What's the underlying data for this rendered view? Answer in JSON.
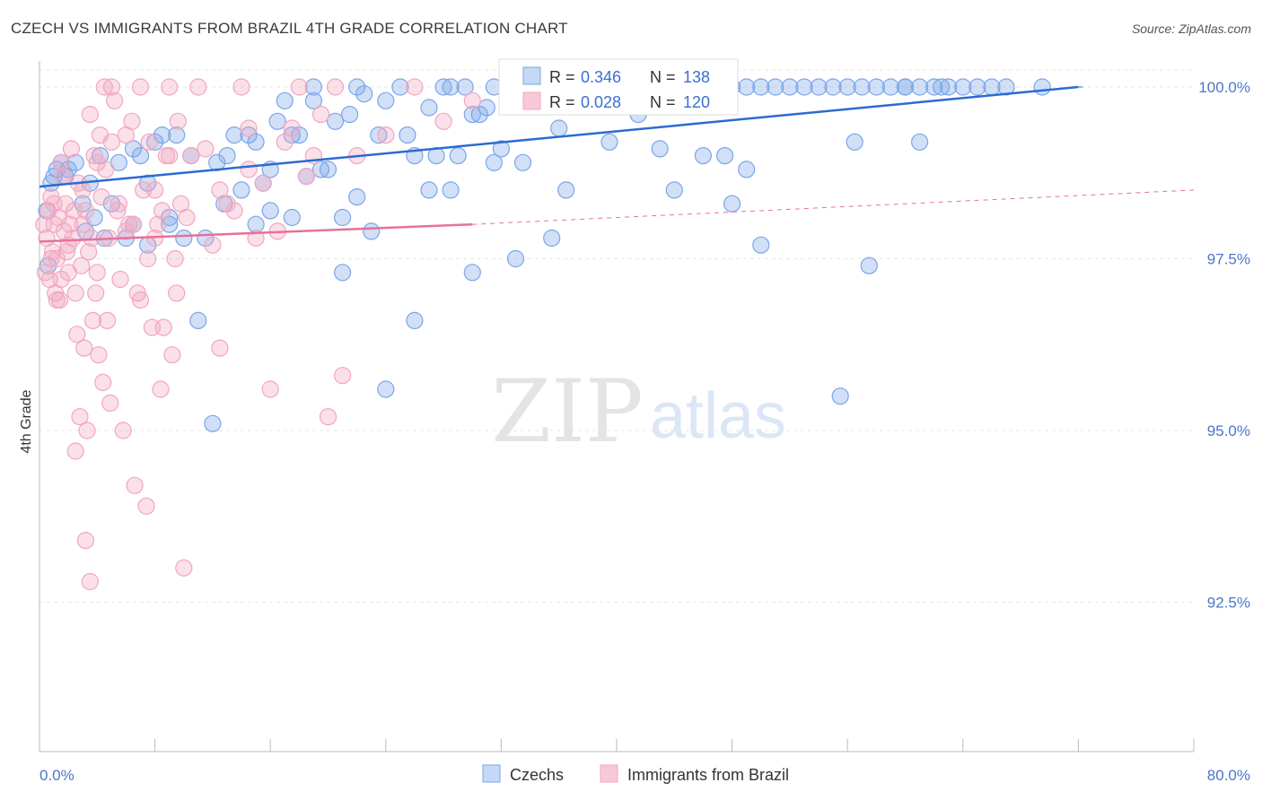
{
  "header": {
    "title": "CZECH VS IMMIGRANTS FROM BRAZIL 4TH GRADE CORRELATION CHART",
    "source": "Source: ZipAtlas.com"
  },
  "watermark": {
    "zip": "ZIP",
    "atlas": "atlas"
  },
  "chart_data": {
    "type": "scatter",
    "title": "CZECH VS IMMIGRANTS FROM BRAZIL 4TH GRADE CORRELATION CHART",
    "ylabel": "4th Grade",
    "xlabel": "",
    "xlim": [
      0,
      80
    ],
    "ylim": [
      90.4,
      100.3
    ],
    "x_tick_labels": [
      "0.0%",
      "80.0%"
    ],
    "y_ticks": [
      {
        "value": 100.0,
        "label": "100.0%"
      },
      {
        "value": 97.5,
        "label": "97.5%"
      },
      {
        "value": 95.0,
        "label": "95.0%"
      },
      {
        "value": 92.5,
        "label": "92.5%"
      }
    ],
    "grid": true,
    "legend_position": "top-center",
    "series": [
      {
        "name": "Czechs",
        "color": "#7aa6e8",
        "line_color": "#2b6bd1",
        "R": "0.346",
        "N": "138",
        "R_label": "R =",
        "N_label": "N =",
        "trend": {
          "x0": 0,
          "y0": 98.55,
          "x1": 72,
          "y1": 100.0,
          "dash_to_x": 72
        },
        "points": [
          [
            0.5,
            98.2
          ],
          [
            0.6,
            97.4
          ],
          [
            0.8,
            98.6
          ],
          [
            1.0,
            98.7
          ],
          [
            1.2,
            98.8
          ],
          [
            1.5,
            98.9
          ],
          [
            1.8,
            98.7
          ],
          [
            2.0,
            98.8
          ],
          [
            2.5,
            98.9
          ],
          [
            3.0,
            98.3
          ],
          [
            3.2,
            97.9
          ],
          [
            3.5,
            98.6
          ],
          [
            3.8,
            98.1
          ],
          [
            4.2,
            99.0
          ],
          [
            4.5,
            97.8
          ],
          [
            5.0,
            98.3
          ],
          [
            5.5,
            98.9
          ],
          [
            6.0,
            97.8
          ],
          [
            6.5,
            99.1
          ],
          [
            7.0,
            99.0
          ],
          [
            7.5,
            98.6
          ],
          [
            8.0,
            99.2
          ],
          [
            8.5,
            99.3
          ],
          [
            9.0,
            98.1
          ],
          [
            9.5,
            99.3
          ],
          [
            10.0,
            97.8
          ],
          [
            10.5,
            99.0
          ],
          [
            11.0,
            96.6
          ],
          [
            11.5,
            97.8
          ],
          [
            12.0,
            95.1
          ],
          [
            12.3,
            98.9
          ],
          [
            12.8,
            98.3
          ],
          [
            13.0,
            99.0
          ],
          [
            13.5,
            99.3
          ],
          [
            14.0,
            98.5
          ],
          [
            14.5,
            99.3
          ],
          [
            15.0,
            99.2
          ],
          [
            15.5,
            98.6
          ],
          [
            16.0,
            98.8
          ],
          [
            16.5,
            99.5
          ],
          [
            17.0,
            99.8
          ],
          [
            17.5,
            99.3
          ],
          [
            18.0,
            99.3
          ],
          [
            18.5,
            98.7
          ],
          [
            19.0,
            99.8
          ],
          [
            19.5,
            98.8
          ],
          [
            20.0,
            98.8
          ],
          [
            20.5,
            99.5
          ],
          [
            21.0,
            97.3
          ],
          [
            21.5,
            99.6
          ],
          [
            22.0,
            100.0
          ],
          [
            22.5,
            99.9
          ],
          [
            23.0,
            97.9
          ],
          [
            23.5,
            99.3
          ],
          [
            24.0,
            99.8
          ],
          [
            25.0,
            100.0
          ],
          [
            25.5,
            99.3
          ],
          [
            26.0,
            96.6
          ],
          [
            27.0,
            99.7
          ],
          [
            27.5,
            99.0
          ],
          [
            28.0,
            100.0
          ],
          [
            28.5,
            98.5
          ],
          [
            29.0,
            99.0
          ],
          [
            29.5,
            100.0
          ],
          [
            30.0,
            97.3
          ],
          [
            30.5,
            99.6
          ],
          [
            31.0,
            99.7
          ],
          [
            31.5,
            100.0
          ],
          [
            32.0,
            99.1
          ],
          [
            32.5,
            100.0
          ],
          [
            33.0,
            100.0
          ],
          [
            33.5,
            98.9
          ],
          [
            34.0,
            100.0
          ],
          [
            35.0,
            100.0
          ],
          [
            35.5,
            97.8
          ],
          [
            36.0,
            99.4
          ],
          [
            37.0,
            100.0
          ],
          [
            38.0,
            100.0
          ],
          [
            39.0,
            100.0
          ],
          [
            40.0,
            100.0
          ],
          [
            41.0,
            100.0
          ],
          [
            42.0,
            100.0
          ],
          [
            43.0,
            100.0
          ],
          [
            44.0,
            100.0
          ],
          [
            45.0,
            100.0
          ],
          [
            46.0,
            100.0
          ],
          [
            47.0,
            100.0
          ],
          [
            48.0,
            100.0
          ],
          [
            49.0,
            100.0
          ],
          [
            50.0,
            100.0
          ],
          [
            51.0,
            100.0
          ],
          [
            52.0,
            100.0
          ],
          [
            53.0,
            100.0
          ],
          [
            54.0,
            100.0
          ],
          [
            55.0,
            100.0
          ],
          [
            56.0,
            100.0
          ],
          [
            57.0,
            100.0
          ],
          [
            58.0,
            100.0
          ],
          [
            59.0,
            100.0
          ],
          [
            60.0,
            100.0
          ],
          [
            61.0,
            100.0
          ],
          [
            62.0,
            100.0
          ],
          [
            63.0,
            100.0
          ],
          [
            64.0,
            100.0
          ],
          [
            65.0,
            100.0
          ],
          [
            66.0,
            100.0
          ],
          [
            67.0,
            100.0
          ],
          [
            69.5,
            100.0
          ],
          [
            36.5,
            98.5
          ],
          [
            39.5,
            99.2
          ],
          [
            44.0,
            98.5
          ],
          [
            46.0,
            99.0
          ],
          [
            47.5,
            99.0
          ],
          [
            48.0,
            98.3
          ],
          [
            49.0,
            98.8
          ],
          [
            50.0,
            97.7
          ],
          [
            55.5,
            95.5
          ],
          [
            56.5,
            99.2
          ],
          [
            57.5,
            97.4
          ],
          [
            60.0,
            100.0
          ],
          [
            61.0,
            99.2
          ],
          [
            62.5,
            100.0
          ],
          [
            16.0,
            98.2
          ],
          [
            19.0,
            100.0
          ],
          [
            22.0,
            98.4
          ],
          [
            27.0,
            98.5
          ],
          [
            33.0,
            97.5
          ],
          [
            21.0,
            98.1
          ],
          [
            24.0,
            95.6
          ],
          [
            7.5,
            97.7
          ],
          [
            9.0,
            98.0
          ],
          [
            6.5,
            98.0
          ],
          [
            15.0,
            98.0
          ],
          [
            17.5,
            98.1
          ],
          [
            26.0,
            99.0
          ],
          [
            28.5,
            100.0
          ],
          [
            30.0,
            99.6
          ],
          [
            31.5,
            98.9
          ],
          [
            34.5,
            99.8
          ],
          [
            41.5,
            99.6
          ],
          [
            43.0,
            99.1
          ]
        ]
      },
      {
        "name": "Immigrants from Brazil",
        "color": "#f2a6bf",
        "line_color": "#e8709a",
        "R": "0.028",
        "N": "120",
        "R_label": "R =",
        "N_label": "N =",
        "trend": {
          "x0": 0,
          "y0": 97.75,
          "x1": 30,
          "y1": 98.0,
          "dash_to_x": 80,
          "dash_y1": 98.5
        },
        "points": [
          [
            0.3,
            98.0
          ],
          [
            0.4,
            97.3
          ],
          [
            0.5,
            97.8
          ],
          [
            0.6,
            98.2
          ],
          [
            0.7,
            97.2
          ],
          [
            0.8,
            98.4
          ],
          [
            0.9,
            97.6
          ],
          [
            1.0,
            98.3
          ],
          [
            1.1,
            97.0
          ],
          [
            1.2,
            97.5
          ],
          [
            1.3,
            98.1
          ],
          [
            1.4,
            96.9
          ],
          [
            1.5,
            97.2
          ],
          [
            1.6,
            98.7
          ],
          [
            1.7,
            97.9
          ],
          [
            1.8,
            98.3
          ],
          [
            1.9,
            97.6
          ],
          [
            2.0,
            97.3
          ],
          [
            2.1,
            98.0
          ],
          [
            2.2,
            99.1
          ],
          [
            2.3,
            97.8
          ],
          [
            2.4,
            98.2
          ],
          [
            2.5,
            97.0
          ],
          [
            2.6,
            96.4
          ],
          [
            2.7,
            98.6
          ],
          [
            2.8,
            95.2
          ],
          [
            2.9,
            97.4
          ],
          [
            3.0,
            98.5
          ],
          [
            3.1,
            96.2
          ],
          [
            3.2,
            98.2
          ],
          [
            3.3,
            95.0
          ],
          [
            3.4,
            97.6
          ],
          [
            3.5,
            99.6
          ],
          [
            3.6,
            97.8
          ],
          [
            3.7,
            96.6
          ],
          [
            3.8,
            99.0
          ],
          [
            3.9,
            97.0
          ],
          [
            4.0,
            98.9
          ],
          [
            4.1,
            96.1
          ],
          [
            4.2,
            99.3
          ],
          [
            4.3,
            98.4
          ],
          [
            4.4,
            95.7
          ],
          [
            4.5,
            100.0
          ],
          [
            4.6,
            98.8
          ],
          [
            4.7,
            96.6
          ],
          [
            4.8,
            97.8
          ],
          [
            4.9,
            95.4
          ],
          [
            5.0,
            100.0
          ],
          [
            5.2,
            99.8
          ],
          [
            5.4,
            98.2
          ],
          [
            5.6,
            97.2
          ],
          [
            5.8,
            95.0
          ],
          [
            6.0,
            99.3
          ],
          [
            6.2,
            98.0
          ],
          [
            6.4,
            99.5
          ],
          [
            6.6,
            94.2
          ],
          [
            6.8,
            97.0
          ],
          [
            7.0,
            100.0
          ],
          [
            7.2,
            98.5
          ],
          [
            7.4,
            93.9
          ],
          [
            7.6,
            99.2
          ],
          [
            7.8,
            96.5
          ],
          [
            8.0,
            97.8
          ],
          [
            8.2,
            98.0
          ],
          [
            8.4,
            95.6
          ],
          [
            8.6,
            96.5
          ],
          [
            8.8,
            99.0
          ],
          [
            9.0,
            100.0
          ],
          [
            9.2,
            96.1
          ],
          [
            9.4,
            97.5
          ],
          [
            9.6,
            99.5
          ],
          [
            9.8,
            98.3
          ],
          [
            10.0,
            93.0
          ],
          [
            10.2,
            98.1
          ],
          [
            11.0,
            100.0
          ],
          [
            12.0,
            97.7
          ],
          [
            12.5,
            96.2
          ],
          [
            13.0,
            98.3
          ],
          [
            14.0,
            100.0
          ],
          [
            14.5,
            99.4
          ],
          [
            15.0,
            97.8
          ],
          [
            16.0,
            95.6
          ],
          [
            17.0,
            99.2
          ],
          [
            18.0,
            100.0
          ],
          [
            19.0,
            99.0
          ],
          [
            20.0,
            95.2
          ],
          [
            21.0,
            95.8
          ],
          [
            3.5,
            92.8
          ],
          [
            3.2,
            93.4
          ],
          [
            2.5,
            94.7
          ],
          [
            1.5,
            98.9
          ],
          [
            0.8,
            97.5
          ],
          [
            1.0,
            98.0
          ],
          [
            1.2,
            96.9
          ],
          [
            5.5,
            98.3
          ],
          [
            6.5,
            98.0
          ],
          [
            7.0,
            96.9
          ],
          [
            8.0,
            98.5
          ],
          [
            9.0,
            99.0
          ],
          [
            4.0,
            97.3
          ],
          [
            3.0,
            98.0
          ],
          [
            2.0,
            97.7
          ],
          [
            5.0,
            99.2
          ],
          [
            6.0,
            97.9
          ],
          [
            7.5,
            97.5
          ],
          [
            8.5,
            98.2
          ],
          [
            9.5,
            97.0
          ],
          [
            10.5,
            99.0
          ],
          [
            11.5,
            99.1
          ],
          [
            12.5,
            98.5
          ],
          [
            13.5,
            98.2
          ],
          [
            14.5,
            98.8
          ],
          [
            15.5,
            98.6
          ],
          [
            16.5,
            97.9
          ],
          [
            17.5,
            99.4
          ],
          [
            18.5,
            98.7
          ],
          [
            19.5,
            99.6
          ],
          [
            20.5,
            100.0
          ],
          [
            22.0,
            99.0
          ],
          [
            24.0,
            99.3
          ],
          [
            26.0,
            100.0
          ],
          [
            28.0,
            99.5
          ],
          [
            30.0,
            99.8
          ]
        ]
      }
    ]
  }
}
